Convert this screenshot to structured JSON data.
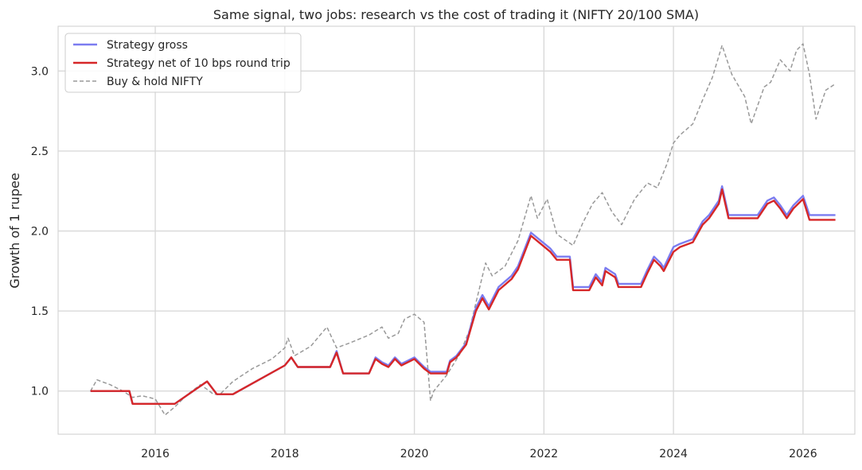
{
  "chart_data": {
    "type": "line",
    "title": "Same signal, two jobs: research vs the cost of trading it (NIFTY 20/100 SMA)",
    "xlabel": "",
    "ylabel": "Growth of 1 rupee",
    "xlim": [
      2014.5,
      2026.8
    ],
    "ylim": [
      0.73,
      3.28
    ],
    "x_ticks": [
      2016,
      2018,
      2020,
      2022,
      2024,
      2026
    ],
    "x_tick_labels": [
      "2016",
      "2018",
      "2020",
      "2022",
      "2024",
      "2026"
    ],
    "y_ticks": [
      1.0,
      1.5,
      2.0,
      2.5,
      3.0
    ],
    "y_tick_labels": [
      "1.0",
      "1.5",
      "2.0",
      "2.5",
      "3.0"
    ],
    "grid": true,
    "legend_position": "top-left",
    "series": [
      {
        "name": "Strategy gross",
        "color": "#7b7cf0",
        "style": "solid",
        "points": [
          [
            2015.0,
            1.0
          ],
          [
            2015.6,
            1.0
          ],
          [
            2015.65,
            0.92
          ],
          [
            2016.3,
            0.92
          ],
          [
            2016.8,
            1.06
          ],
          [
            2016.95,
            0.98
          ],
          [
            2017.2,
            0.98
          ],
          [
            2018.0,
            1.16
          ],
          [
            2018.1,
            1.21
          ],
          [
            2018.2,
            1.15
          ],
          [
            2018.7,
            1.15
          ],
          [
            2018.8,
            1.25
          ],
          [
            2018.9,
            1.11
          ],
          [
            2019.3,
            1.11
          ],
          [
            2019.4,
            1.21
          ],
          [
            2019.5,
            1.18
          ],
          [
            2019.6,
            1.16
          ],
          [
            2019.7,
            1.21
          ],
          [
            2019.8,
            1.17
          ],
          [
            2020.0,
            1.21
          ],
          [
            2020.15,
            1.15
          ],
          [
            2020.25,
            1.12
          ],
          [
            2020.5,
            1.12
          ],
          [
            2020.55,
            1.19
          ],
          [
            2020.65,
            1.22
          ],
          [
            2020.8,
            1.3
          ],
          [
            2020.95,
            1.52
          ],
          [
            2021.05,
            1.6
          ],
          [
            2021.15,
            1.53
          ],
          [
            2021.3,
            1.65
          ],
          [
            2021.5,
            1.72
          ],
          [
            2021.6,
            1.78
          ],
          [
            2021.8,
            1.99
          ],
          [
            2021.95,
            1.94
          ],
          [
            2022.1,
            1.89
          ],
          [
            2022.2,
            1.84
          ],
          [
            2022.4,
            1.84
          ],
          [
            2022.45,
            1.65
          ],
          [
            2022.7,
            1.65
          ],
          [
            2022.8,
            1.73
          ],
          [
            2022.9,
            1.68
          ],
          [
            2022.95,
            1.77
          ],
          [
            2023.1,
            1.73
          ],
          [
            2023.15,
            1.67
          ],
          [
            2023.5,
            1.67
          ],
          [
            2023.6,
            1.76
          ],
          [
            2023.7,
            1.84
          ],
          [
            2023.8,
            1.8
          ],
          [
            2023.85,
            1.77
          ],
          [
            2024.0,
            1.9
          ],
          [
            2024.1,
            1.92
          ],
          [
            2024.3,
            1.95
          ],
          [
            2024.45,
            2.06
          ],
          [
            2024.55,
            2.1
          ],
          [
            2024.7,
            2.19
          ],
          [
            2024.75,
            2.28
          ],
          [
            2024.85,
            2.1
          ],
          [
            2025.3,
            2.1
          ],
          [
            2025.45,
            2.19
          ],
          [
            2025.55,
            2.21
          ],
          [
            2025.65,
            2.16
          ],
          [
            2025.75,
            2.1
          ],
          [
            2025.85,
            2.16
          ],
          [
            2026.0,
            2.22
          ],
          [
            2026.1,
            2.1
          ],
          [
            2026.5,
            2.1
          ]
        ]
      },
      {
        "name": "Strategy net of 10 bps round trip",
        "color": "#d62728",
        "style": "solid",
        "points": [
          [
            2015.0,
            1.0
          ],
          [
            2015.6,
            1.0
          ],
          [
            2015.65,
            0.92
          ],
          [
            2016.3,
            0.92
          ],
          [
            2016.8,
            1.06
          ],
          [
            2016.95,
            0.98
          ],
          [
            2017.2,
            0.98
          ],
          [
            2018.0,
            1.16
          ],
          [
            2018.1,
            1.21
          ],
          [
            2018.2,
            1.15
          ],
          [
            2018.7,
            1.15
          ],
          [
            2018.8,
            1.24
          ],
          [
            2018.9,
            1.11
          ],
          [
            2019.3,
            1.11
          ],
          [
            2019.4,
            1.2
          ],
          [
            2019.5,
            1.17
          ],
          [
            2019.6,
            1.15
          ],
          [
            2019.7,
            1.2
          ],
          [
            2019.8,
            1.16
          ],
          [
            2020.0,
            1.2
          ],
          [
            2020.15,
            1.14
          ],
          [
            2020.25,
            1.11
          ],
          [
            2020.5,
            1.11
          ],
          [
            2020.55,
            1.18
          ],
          [
            2020.65,
            1.21
          ],
          [
            2020.8,
            1.29
          ],
          [
            2020.95,
            1.5
          ],
          [
            2021.05,
            1.58
          ],
          [
            2021.15,
            1.51
          ],
          [
            2021.3,
            1.63
          ],
          [
            2021.5,
            1.7
          ],
          [
            2021.6,
            1.76
          ],
          [
            2021.8,
            1.97
          ],
          [
            2021.95,
            1.92
          ],
          [
            2022.1,
            1.87
          ],
          [
            2022.2,
            1.82
          ],
          [
            2022.4,
            1.82
          ],
          [
            2022.45,
            1.63
          ],
          [
            2022.7,
            1.63
          ],
          [
            2022.8,
            1.71
          ],
          [
            2022.9,
            1.66
          ],
          [
            2022.95,
            1.75
          ],
          [
            2023.1,
            1.71
          ],
          [
            2023.15,
            1.65
          ],
          [
            2023.5,
            1.65
          ],
          [
            2023.6,
            1.74
          ],
          [
            2023.7,
            1.82
          ],
          [
            2023.8,
            1.78
          ],
          [
            2023.85,
            1.75
          ],
          [
            2024.0,
            1.87
          ],
          [
            2024.1,
            1.9
          ],
          [
            2024.3,
            1.93
          ],
          [
            2024.45,
            2.04
          ],
          [
            2024.55,
            2.08
          ],
          [
            2024.7,
            2.17
          ],
          [
            2024.75,
            2.26
          ],
          [
            2024.85,
            2.08
          ],
          [
            2025.3,
            2.08
          ],
          [
            2025.45,
            2.17
          ],
          [
            2025.55,
            2.19
          ],
          [
            2025.65,
            2.14
          ],
          [
            2025.75,
            2.08
          ],
          [
            2025.85,
            2.14
          ],
          [
            2026.0,
            2.2
          ],
          [
            2026.1,
            2.07
          ],
          [
            2026.5,
            2.07
          ]
        ]
      },
      {
        "name": "Buy & hold NIFTY",
        "color": "#999999",
        "style": "dashed",
        "points": [
          [
            2015.0,
            1.0
          ],
          [
            2015.1,
            1.07
          ],
          [
            2015.3,
            1.04
          ],
          [
            2015.5,
            1.0
          ],
          [
            2015.65,
            0.96
          ],
          [
            2015.8,
            0.97
          ],
          [
            2016.0,
            0.95
          ],
          [
            2016.15,
            0.85
          ],
          [
            2016.3,
            0.9
          ],
          [
            2016.5,
            0.98
          ],
          [
            2016.7,
            1.04
          ],
          [
            2016.9,
            0.98
          ],
          [
            2017.0,
            0.98
          ],
          [
            2017.2,
            1.06
          ],
          [
            2017.5,
            1.14
          ],
          [
            2017.8,
            1.2
          ],
          [
            2018.0,
            1.27
          ],
          [
            2018.05,
            1.33
          ],
          [
            2018.15,
            1.22
          ],
          [
            2018.4,
            1.28
          ],
          [
            2018.65,
            1.4
          ],
          [
            2018.8,
            1.27
          ],
          [
            2019.0,
            1.3
          ],
          [
            2019.3,
            1.35
          ],
          [
            2019.5,
            1.4
          ],
          [
            2019.6,
            1.33
          ],
          [
            2019.75,
            1.36
          ],
          [
            2019.85,
            1.45
          ],
          [
            2020.0,
            1.48
          ],
          [
            2020.15,
            1.43
          ],
          [
            2020.25,
            0.94
          ],
          [
            2020.3,
            1.0
          ],
          [
            2020.5,
            1.1
          ],
          [
            2020.7,
            1.23
          ],
          [
            2020.85,
            1.38
          ],
          [
            2020.95,
            1.55
          ],
          [
            2021.1,
            1.8
          ],
          [
            2021.2,
            1.72
          ],
          [
            2021.4,
            1.78
          ],
          [
            2021.6,
            1.94
          ],
          [
            2021.8,
            2.22
          ],
          [
            2021.9,
            2.08
          ],
          [
            2022.05,
            2.2
          ],
          [
            2022.2,
            1.98
          ],
          [
            2022.45,
            1.91
          ],
          [
            2022.6,
            2.05
          ],
          [
            2022.75,
            2.17
          ],
          [
            2022.9,
            2.24
          ],
          [
            2023.05,
            2.12
          ],
          [
            2023.2,
            2.04
          ],
          [
            2023.4,
            2.2
          ],
          [
            2023.6,
            2.3
          ],
          [
            2023.75,
            2.27
          ],
          [
            2023.9,
            2.42
          ],
          [
            2024.0,
            2.55
          ],
          [
            2024.1,
            2.6
          ],
          [
            2024.3,
            2.67
          ],
          [
            2024.45,
            2.82
          ],
          [
            2024.6,
            2.96
          ],
          [
            2024.75,
            3.16
          ],
          [
            2024.9,
            2.98
          ],
          [
            2025.1,
            2.84
          ],
          [
            2025.2,
            2.67
          ],
          [
            2025.4,
            2.9
          ],
          [
            2025.5,
            2.93
          ],
          [
            2025.65,
            3.07
          ],
          [
            2025.8,
            3.0
          ],
          [
            2025.9,
            3.13
          ],
          [
            2026.0,
            3.17
          ],
          [
            2026.1,
            2.98
          ],
          [
            2026.2,
            2.7
          ],
          [
            2026.35,
            2.88
          ],
          [
            2026.5,
            2.92
          ]
        ]
      }
    ]
  }
}
